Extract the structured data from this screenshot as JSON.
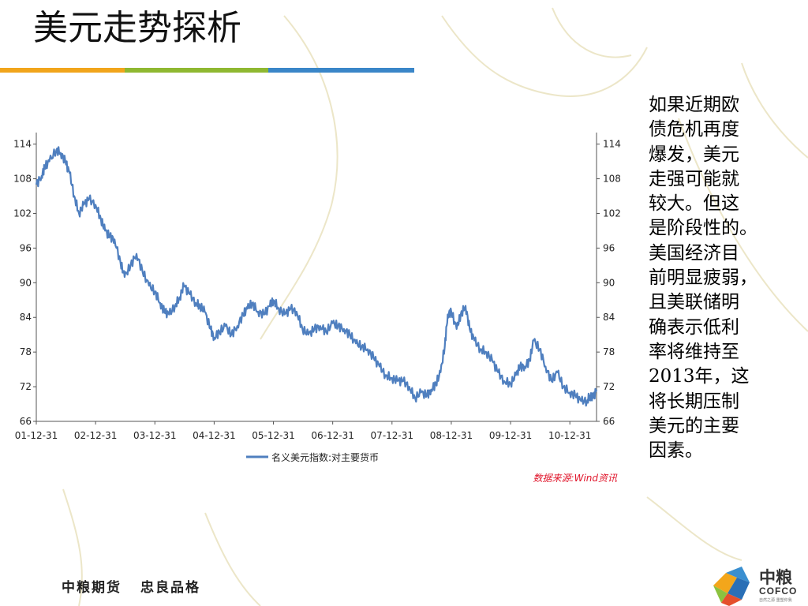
{
  "slide": {
    "title": "美元走势探析",
    "side_text_lines": [
      "如果近期欧",
      "债危机再度",
      "爆发，美元",
      "走强可能就",
      "较大。但这",
      "是阶段性的。",
      "美国经济目",
      "前明显疲弱，",
      "且美联储明",
      "确表示低利",
      "率将维持至",
      "2013年，这",
      "将长期压制",
      "美元的主要",
      "因素。"
    ],
    "footer_slogan": [
      "中粮期货",
      "忠良品格"
    ],
    "logo": {
      "name_cn": "中粮",
      "name_en": "COFCO",
      "tagline": "自然之源 重塑你我"
    },
    "colors": {
      "bar_orange": "#f1a51b",
      "bar_green": "#8fb831",
      "bar_blue": "#3a86c8",
      "series": "#4f7fbf",
      "source_text": "#e0142a"
    }
  },
  "chart_data": {
    "type": "line",
    "title": "",
    "xlabel": "",
    "ylabel": "",
    "x_ticks": [
      "01-12-31",
      "02-12-31",
      "03-12-31",
      "04-12-31",
      "05-12-31",
      "06-12-31",
      "07-12-31",
      "08-12-31",
      "09-12-31",
      "10-12-31"
    ],
    "y_ticks": [
      66,
      72,
      78,
      84,
      90,
      96,
      102,
      108,
      114
    ],
    "ylim": [
      66,
      116
    ],
    "xlim": [
      2001.96,
      2011.41
    ],
    "right_axis_mirror": true,
    "grid": false,
    "legend": {
      "position": "bottom",
      "entries": [
        "名义美元指数:对主要货币"
      ]
    },
    "source_note": "数据来源:Wind资讯",
    "series": [
      {
        "name": "名义美元指数:对主要货币",
        "x": [
          2001.96,
          2002.05,
          2002.1,
          2002.18,
          2002.3,
          2002.37,
          2002.45,
          2002.52,
          2002.6,
          2002.68,
          2002.76,
          2002.85,
          2002.96,
          2003.05,
          2003.12,
          2003.2,
          2003.28,
          2003.38,
          2003.45,
          2003.55,
          2003.65,
          2003.75,
          2003.86,
          2003.96,
          2004.05,
          2004.12,
          2004.2,
          2004.3,
          2004.38,
          2004.45,
          2004.55,
          2004.65,
          2004.72,
          2004.8,
          2004.9,
          2004.96,
          2005.05,
          2005.15,
          2005.25,
          2005.35,
          2005.45,
          2005.52,
          2005.6,
          2005.7,
          2005.8,
          2005.9,
          2005.96,
          2006.05,
          2006.15,
          2006.25,
          2006.35,
          2006.45,
          2006.55,
          2006.65,
          2006.75,
          2006.85,
          2006.96,
          2007.05,
          2007.15,
          2007.25,
          2007.35,
          2007.45,
          2007.55,
          2007.65,
          2007.75,
          2007.85,
          2007.96,
          2008.05,
          2008.15,
          2008.25,
          2008.35,
          2008.45,
          2008.55,
          2008.62,
          2008.7,
          2008.78,
          2008.85,
          2008.9,
          2008.96,
          2009.05,
          2009.12,
          2009.2,
          2009.27,
          2009.35,
          2009.45,
          2009.55,
          2009.65,
          2009.75,
          2009.85,
          2009.96,
          2010.05,
          2010.12,
          2010.2,
          2010.28,
          2010.35,
          2010.45,
          2010.55,
          2010.65,
          2010.75,
          2010.85,
          2010.96,
          2011.05,
          2011.15,
          2011.25,
          2011.3,
          2011.35,
          2011.41
        ],
        "y": [
          107,
          108.5,
          110,
          111,
          113,
          112.5,
          111,
          109,
          105,
          102,
          103.5,
          104.5,
          103.5,
          101,
          99,
          98,
          97.5,
          93.5,
          91,
          93,
          95,
          92,
          89.5,
          88.5,
          86.5,
          85,
          84.5,
          86,
          87.5,
          89.5,
          88,
          86.5,
          86,
          85,
          82,
          80.5,
          81.5,
          82.5,
          81,
          82.5,
          84.5,
          85.5,
          86.5,
          85,
          84.5,
          86,
          87,
          85.5,
          84.5,
          85.5,
          85,
          82,
          81,
          82,
          82.5,
          81.5,
          83,
          82.5,
          82,
          81,
          79.5,
          79,
          78.5,
          77,
          75.5,
          74,
          73.5,
          73,
          73,
          72,
          70,
          71,
          70.5,
          71.5,
          72.5,
          74.5,
          79,
          84.5,
          85,
          82,
          84.5,
          86,
          82,
          80,
          78.5,
          78,
          76.5,
          74.5,
          73,
          72.5,
          74,
          75.5,
          75.5,
          76.5,
          80,
          78.5,
          75.5,
          73,
          74.5,
          72,
          71,
          70.5,
          69.5,
          69.5,
          70.5,
          70,
          71.5
        ]
      }
    ]
  }
}
